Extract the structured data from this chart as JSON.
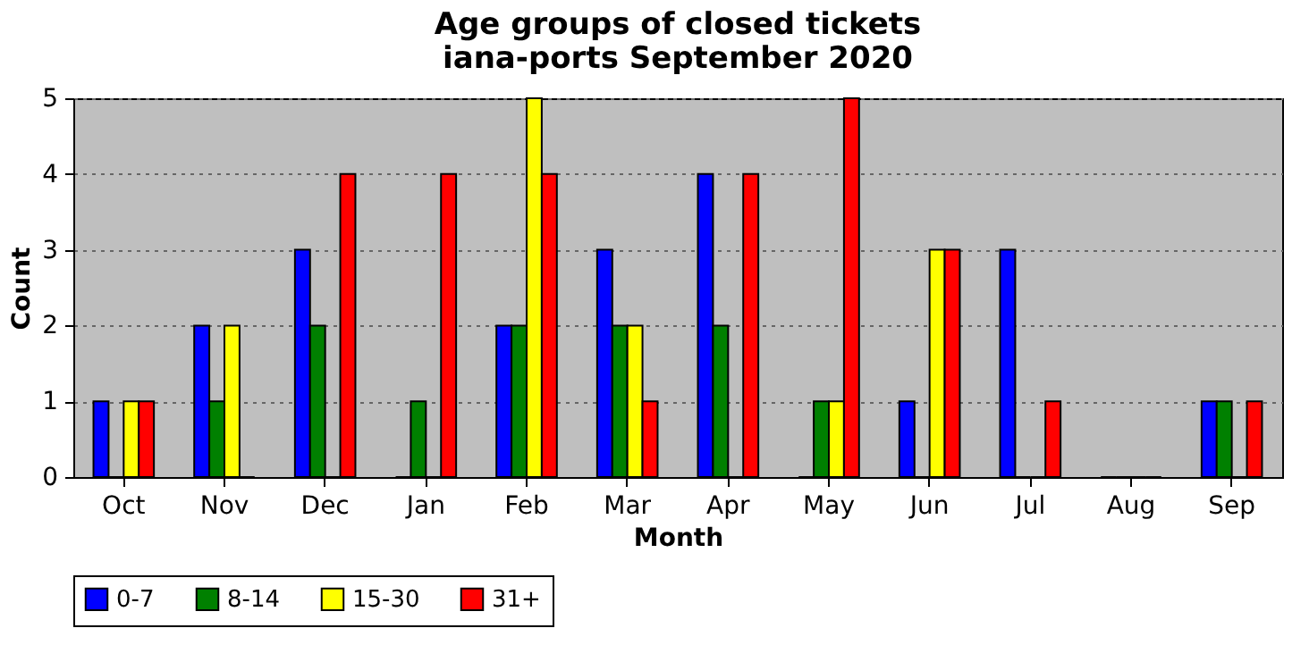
{
  "chart_data": {
    "type": "bar",
    "title": "Age groups of closed tickets",
    "subtitle": "iana-ports September 2020",
    "xlabel": "Month",
    "ylabel": "Count",
    "categories": [
      "Oct",
      "Nov",
      "Dec",
      "Jan",
      "Feb",
      "Mar",
      "Apr",
      "May",
      "Jun",
      "Jul",
      "Aug",
      "Sep"
    ],
    "series": [
      {
        "name": "0-7",
        "color": "#0000ff",
        "values": [
          1,
          2,
          3,
          0,
          2,
          3,
          4,
          0,
          1,
          3,
          0,
          1
        ]
      },
      {
        "name": "8-14",
        "color": "#008000",
        "values": [
          0,
          1,
          2,
          1,
          2,
          2,
          2,
          1,
          0,
          0,
          0,
          1
        ]
      },
      {
        "name": "15-30",
        "color": "#ffff00",
        "values": [
          1,
          2,
          0,
          0,
          5,
          2,
          0,
          1,
          3,
          0,
          0,
          0
        ]
      },
      {
        "name": "31+",
        "color": "#ff0000",
        "values": [
          1,
          0,
          4,
          4,
          4,
          1,
          4,
          5,
          3,
          1,
          0,
          1
        ]
      }
    ],
    "ylim": [
      0,
      5
    ],
    "yticks": [
      0,
      1,
      2,
      3,
      4,
      5
    ],
    "grid": "y",
    "legend": "bottom"
  }
}
